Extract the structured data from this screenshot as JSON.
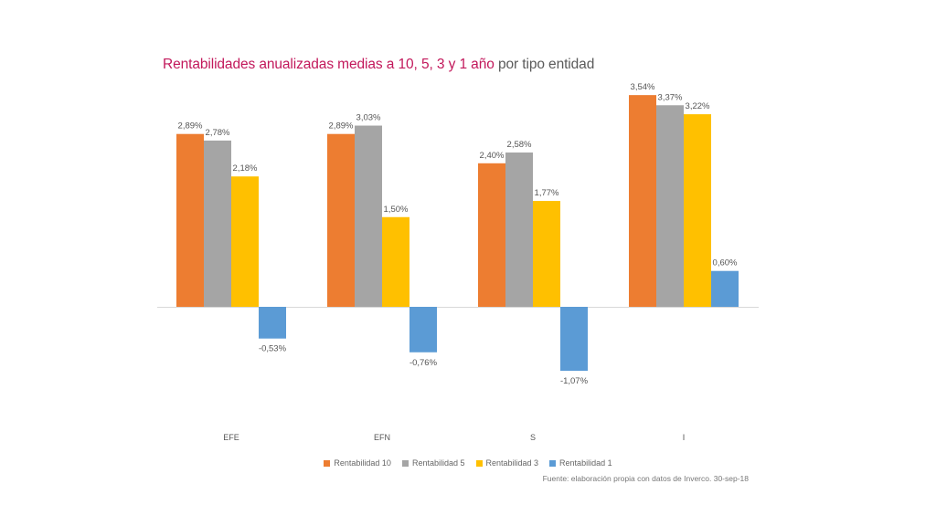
{
  "title": {
    "main": "Rentabilidades anualizadas medias a 10, 5, 3 y 1 año",
    "rest": " por tipo entidad"
  },
  "source": "Fuente: elaboración propia con datos de Inverco. 30-sep-18",
  "chart_data": {
    "type": "bar",
    "title": "Rentabilidades anualizadas medias a 10, 5, 3 y 1 año por tipo entidad",
    "categories": [
      "EFE",
      "EFN",
      "S",
      "I"
    ],
    "series": [
      {
        "name": "Rentabilidad 10",
        "color": "#ed7d31",
        "values": [
          2.89,
          2.89,
          2.4,
          3.54
        ],
        "labels": [
          "2,89%",
          "2,89%",
          "2,40%",
          "3,54%"
        ]
      },
      {
        "name": "Rentabilidad 5",
        "color": "#a5a5a5",
        "values": [
          2.78,
          3.03,
          2.58,
          3.37
        ],
        "labels": [
          "2,78%",
          "3,03%",
          "2,58%",
          "3,37%"
        ]
      },
      {
        "name": "Rentabilidad 3",
        "color": "#ffc000",
        "values": [
          2.18,
          1.5,
          1.77,
          3.22
        ],
        "labels": [
          "2,18%",
          "1,50%",
          "1,77%",
          "3,22%"
        ]
      },
      {
        "name": "Rentabilidad 1",
        "color": "#5b9bd5",
        "values": [
          -0.53,
          -0.76,
          -1.07,
          0.6
        ],
        "labels": [
          "-0,53%",
          "-0,76%",
          "-1,07%",
          "0,60%"
        ]
      }
    ],
    "ylim": [
      -1.5,
      3.6
    ],
    "legend": "bottom-center",
    "grid": false
  }
}
